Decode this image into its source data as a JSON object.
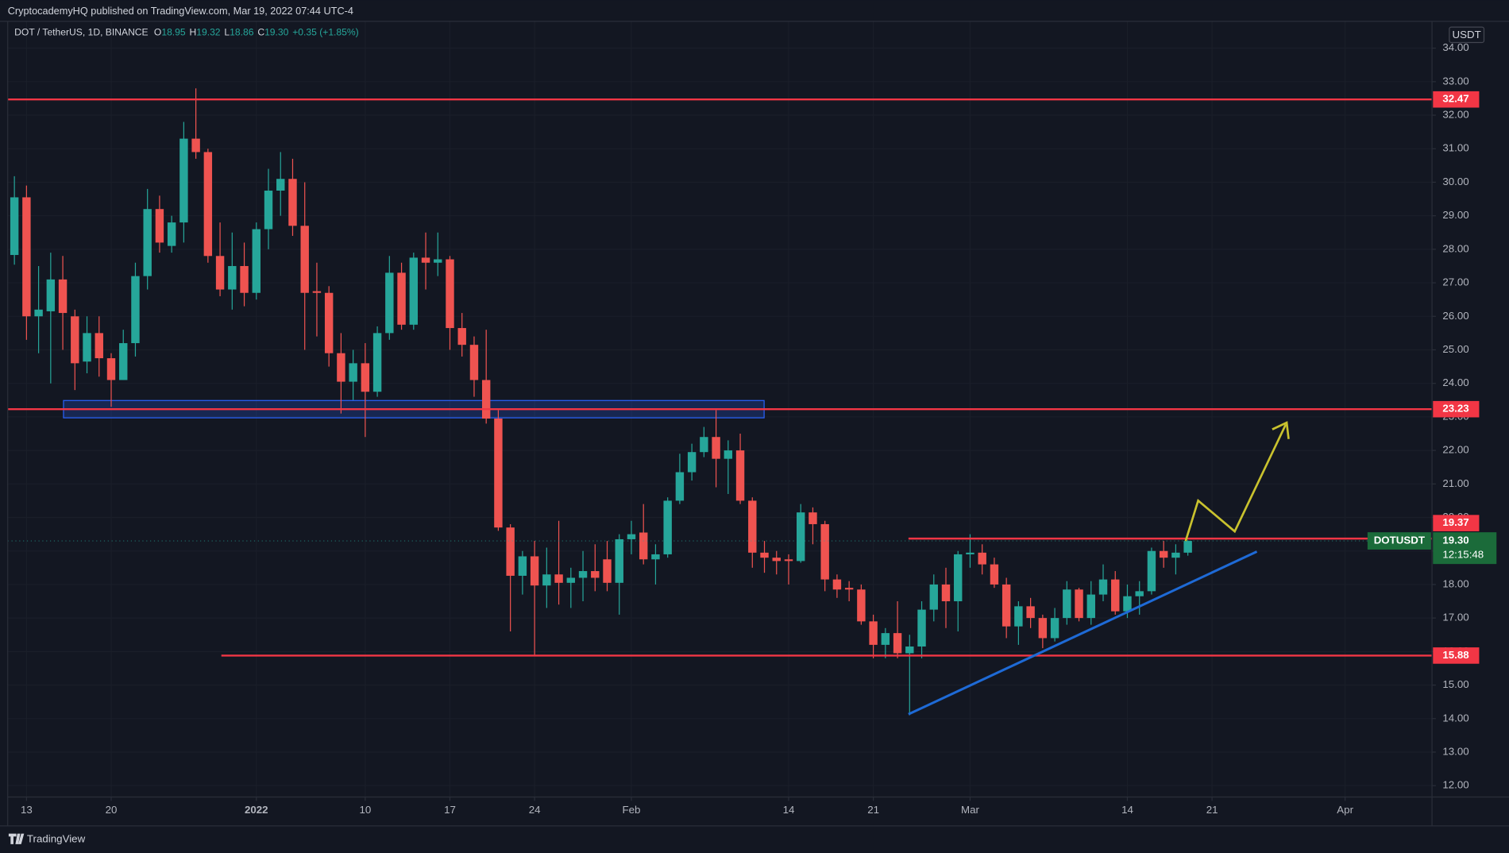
{
  "header": {
    "publisher": "CryptocademyHQ published on TradingView.com, Mar 19, 2022 07:44 UTC-4"
  },
  "footer": {
    "brand": "TradingView"
  },
  "chart_data": {
    "type": "candlestick",
    "symbol": "DOT / TetherUS, 1D, BINANCE",
    "legend_keys": [
      "O",
      "H",
      "L",
      "C"
    ],
    "legend_values": [
      18.95,
      19.32,
      18.86,
      {
        "value": 19.3,
        "label": "19.30"
      }
    ],
    "change": "+0.35 (+1.85%)",
    "axis_unit": "USDT",
    "x": [
      "2021-12-12",
      "2021-12-13",
      "2021-12-14",
      "2021-12-15",
      "2021-12-16",
      "2021-12-17",
      "2021-12-18",
      "2021-12-19",
      "2021-12-20",
      "2021-12-21",
      "2021-12-22",
      "2021-12-23",
      "2021-12-24",
      "2021-12-25",
      "2021-12-26",
      "2021-12-27",
      "2021-12-28",
      "2021-12-29",
      "2021-12-30",
      "2021-12-31",
      "2022-01-01",
      "2022-01-02",
      "2022-01-03",
      "2022-01-04",
      "2022-01-05",
      "2022-01-06",
      "2022-01-07",
      "2022-01-08",
      "2022-01-09",
      "2022-01-10",
      "2022-01-11",
      "2022-01-12",
      "2022-01-13",
      "2022-01-14",
      "2022-01-15",
      "2022-01-16",
      "2022-01-17",
      "2022-01-18",
      "2022-01-19",
      "2022-01-20",
      "2022-01-21",
      "2022-01-22",
      "2022-01-23",
      "2022-01-24",
      "2022-01-25",
      "2022-01-26",
      "2022-01-27",
      "2022-01-28",
      "2022-01-29",
      "2022-01-30",
      "2022-01-31",
      "2022-02-01",
      "2022-02-02",
      "2022-02-03",
      "2022-02-04",
      "2022-02-05",
      "2022-02-06",
      "2022-02-07",
      "2022-02-08",
      "2022-02-09",
      "2022-02-10",
      "2022-02-11",
      "2022-02-12",
      "2022-02-13",
      "2022-02-14",
      "2022-02-15",
      "2022-02-16",
      "2022-02-17",
      "2022-02-18",
      "2022-02-19",
      "2022-02-20",
      "2022-02-21",
      "2022-02-22",
      "2022-02-23",
      "2022-02-24",
      "2022-02-25",
      "2022-02-26",
      "2022-02-27",
      "2022-02-28",
      "2022-03-01",
      "2022-03-02",
      "2022-03-03",
      "2022-03-04",
      "2022-03-05",
      "2022-03-06",
      "2022-03-07",
      "2022-03-08",
      "2022-03-09",
      "2022-03-10",
      "2022-03-11",
      "2022-03-12",
      "2022-03-13",
      "2022-03-14",
      "2022-03-15",
      "2022-03-16",
      "2022-03-17",
      "2022-03-18",
      "2022-03-19"
    ],
    "open": [
      27.83,
      29.55,
      26.0,
      26.15,
      27.1,
      26.0,
      24.65,
      25.5,
      24.75,
      24.1,
      25.2,
      27.2,
      29.2,
      28.1,
      28.8,
      31.3,
      30.9,
      27.8,
      26.8,
      27.5,
      26.7,
      28.6,
      29.75,
      30.1,
      28.7,
      26.75,
      26.7,
      24.9,
      24.05,
      24.6,
      23.75,
      25.5,
      27.3,
      25.75,
      27.75,
      27.6,
      27.7,
      25.65,
      25.15,
      24.1,
      22.95,
      19.7,
      18.26,
      18.84,
      17.97,
      18.3,
      18.05,
      18.2,
      18.4,
      18.75,
      18.05,
      19.35,
      19.55,
      18.75,
      18.9,
      20.5,
      21.35,
      21.95,
      22.4,
      21.75,
      22.0,
      20.5,
      18.95,
      18.8,
      18.75,
      18.7,
      20.15,
      19.8,
      18.15,
      17.9,
      17.85,
      16.9,
      16.2,
      16.55,
      15.95,
      16.15,
      17.25,
      18.0,
      17.5,
      18.9,
      18.95,
      18.6,
      18.0,
      16.75,
      17.35,
      17.0,
      16.4,
      17.0,
      17.85,
      17.0,
      17.7,
      18.15,
      17.2,
      17.65,
      17.8,
      19.0,
      18.8,
      18.95
    ],
    "high": [
      30.18,
      29.9,
      27.5,
      27.9,
      27.8,
      26.2,
      26.0,
      26.0,
      24.9,
      25.6,
      27.6,
      29.8,
      29.6,
      29.0,
      31.8,
      32.8,
      31.0,
      28.8,
      28.5,
      28.2,
      28.8,
      30.4,
      30.9,
      30.7,
      30.0,
      27.6,
      26.9,
      25.5,
      25.0,
      25.2,
      25.7,
      27.8,
      27.6,
      27.9,
      28.5,
      28.5,
      27.8,
      26.1,
      25.4,
      25.6,
      23.2,
      19.8,
      19.0,
      19.3,
      19.1,
      19.9,
      18.5,
      19.0,
      19.2,
      19.3,
      19.5,
      19.9,
      20.4,
      19.2,
      20.6,
      21.9,
      22.2,
      22.7,
      23.2,
      22.3,
      22.5,
      20.6,
      19.3,
      19.0,
      18.9,
      20.4,
      20.3,
      19.9,
      18.3,
      18.1,
      18.0,
      17.1,
      16.7,
      17.5,
      16.5,
      17.5,
      18.3,
      18.5,
      19.0,
      19.5,
      19.2,
      18.8,
      18.2,
      17.5,
      17.6,
      17.1,
      17.3,
      18.1,
      17.9,
      18.1,
      18.6,
      18.4,
      18.0,
      18.1,
      19.1,
      19.3,
      19.2,
      19.32
    ],
    "low": [
      27.54,
      25.3,
      24.9,
      24.0,
      25.0,
      23.8,
      24.3,
      24.2,
      23.3,
      24.1,
      24.8,
      26.8,
      27.9,
      27.9,
      28.2,
      30.7,
      27.6,
      26.6,
      26.2,
      26.3,
      26.5,
      28.0,
      29.0,
      28.4,
      25.0,
      25.4,
      24.5,
      23.1,
      23.5,
      22.4,
      23.6,
      25.3,
      25.6,
      25.6,
      26.8,
      27.2,
      25.0,
      24.8,
      23.6,
      22.8,
      19.6,
      16.6,
      17.7,
      15.88,
      17.3,
      17.4,
      17.3,
      17.5,
      17.8,
      17.8,
      17.1,
      18.9,
      18.6,
      18.0,
      18.8,
      20.4,
      21.1,
      21.8,
      20.9,
      20.7,
      20.4,
      18.5,
      18.35,
      18.3,
      18.0,
      18.65,
      19.2,
      17.8,
      17.6,
      17.5,
      16.8,
      15.8,
      15.8,
      15.8,
      14.1,
      15.8,
      16.9,
      16.7,
      16.6,
      18.5,
      18.3,
      17.9,
      16.4,
      16.2,
      16.7,
      16.1,
      16.3,
      16.8,
      16.9,
      16.8,
      17.5,
      17.1,
      17.0,
      17.1,
      17.7,
      18.5,
      18.3,
      18.86
    ],
    "close": [
      29.55,
      26.0,
      26.2,
      27.1,
      26.1,
      24.6,
      25.5,
      24.75,
      24.1,
      25.2,
      27.2,
      29.2,
      28.2,
      28.8,
      31.3,
      30.9,
      27.8,
      26.8,
      27.5,
      26.7,
      28.6,
      29.75,
      30.1,
      28.7,
      26.7,
      26.7,
      24.9,
      24.05,
      24.6,
      23.75,
      25.5,
      27.3,
      25.75,
      27.75,
      27.6,
      27.7,
      25.65,
      25.15,
      24.1,
      22.95,
      19.7,
      18.26,
      18.84,
      17.97,
      18.3,
      18.05,
      18.2,
      18.4,
      18.2,
      18.05,
      19.35,
      19.5,
      18.75,
      18.9,
      20.5,
      21.35,
      21.95,
      22.4,
      21.75,
      22.0,
      20.5,
      18.95,
      18.8,
      18.7,
      18.7,
      20.15,
      19.8,
      18.15,
      17.85,
      17.85,
      16.9,
      16.2,
      16.55,
      15.95,
      16.15,
      17.25,
      18.0,
      17.5,
      18.9,
      18.95,
      18.6,
      18.0,
      16.75,
      17.35,
      17.0,
      16.4,
      17.0,
      17.85,
      17.0,
      17.7,
      18.15,
      17.2,
      17.65,
      17.8,
      19.0,
      18.8,
      18.95,
      19.3
    ],
    "up_color": "#26a69a",
    "down_color": "#ef5350",
    "xlim": [
      "2021-12-11",
      "2022-04-08"
    ],
    "xticks": [
      {
        "value": "2021-12-13",
        "label": "13"
      },
      {
        "value": "2021-12-20",
        "label": "20"
      },
      {
        "value": "2022-01-01",
        "label": "2022"
      },
      {
        "value": "2022-01-10",
        "label": "10"
      },
      {
        "value": "2022-01-17",
        "label": "17"
      },
      {
        "value": "2022-01-24",
        "label": "24"
      },
      {
        "value": "2022-02-01",
        "label": "Feb"
      },
      {
        "value": "2022-02-14",
        "label": "14"
      },
      {
        "value": "2022-02-21",
        "label": "21"
      },
      {
        "value": "2022-03-01",
        "label": "Mar"
      },
      {
        "value": "2022-03-14",
        "label": "14"
      },
      {
        "value": "2022-03-21",
        "label": "21"
      },
      {
        "value": "2022-04-01",
        "label": "Apr"
      }
    ],
    "ylim": [
      11.66,
      34.8
    ],
    "yticks": [
      {
        "value": 12,
        "label": "12.00"
      },
      {
        "value": 13,
        "label": "13.00"
      },
      {
        "value": 14,
        "label": "14.00"
      },
      {
        "value": 15,
        "label": "15.00"
      },
      {
        "value": 16,
        "label": "16.00"
      },
      {
        "value": 17,
        "label": "17.00"
      },
      {
        "value": 18,
        "label": "18.00"
      },
      {
        "value": 19,
        "label": "19.00"
      },
      {
        "value": 20,
        "label": "20.00"
      },
      {
        "value": 21,
        "label": "21.00"
      },
      {
        "value": 22,
        "label": "22.00"
      },
      {
        "value": 23,
        "label": "23.00"
      },
      {
        "value": 24,
        "label": "24.00"
      },
      {
        "value": 25,
        "label": "25.00"
      },
      {
        "value": 26,
        "label": "26.00"
      },
      {
        "value": 27,
        "label": "27.00"
      },
      {
        "value": 28,
        "label": "28.00"
      },
      {
        "value": 29,
        "label": "29.00"
      },
      {
        "value": 30,
        "label": "30.00"
      },
      {
        "value": 31,
        "label": "31.00"
      },
      {
        "value": 32,
        "label": "32.00"
      },
      {
        "value": 33,
        "label": "33.00"
      },
      {
        "value": 34,
        "label": "34.00"
      }
    ],
    "grid": true,
    "levels": [
      32.47,
      23.23,
      19.37,
      15.88
    ],
    "level_color": "#f23645",
    "last_price": {
      "value": 19.3,
      "label": "19.30"
    },
    "last_symbol": "DOTUSDT",
    "countdown": "12:15:48"
  }
}
